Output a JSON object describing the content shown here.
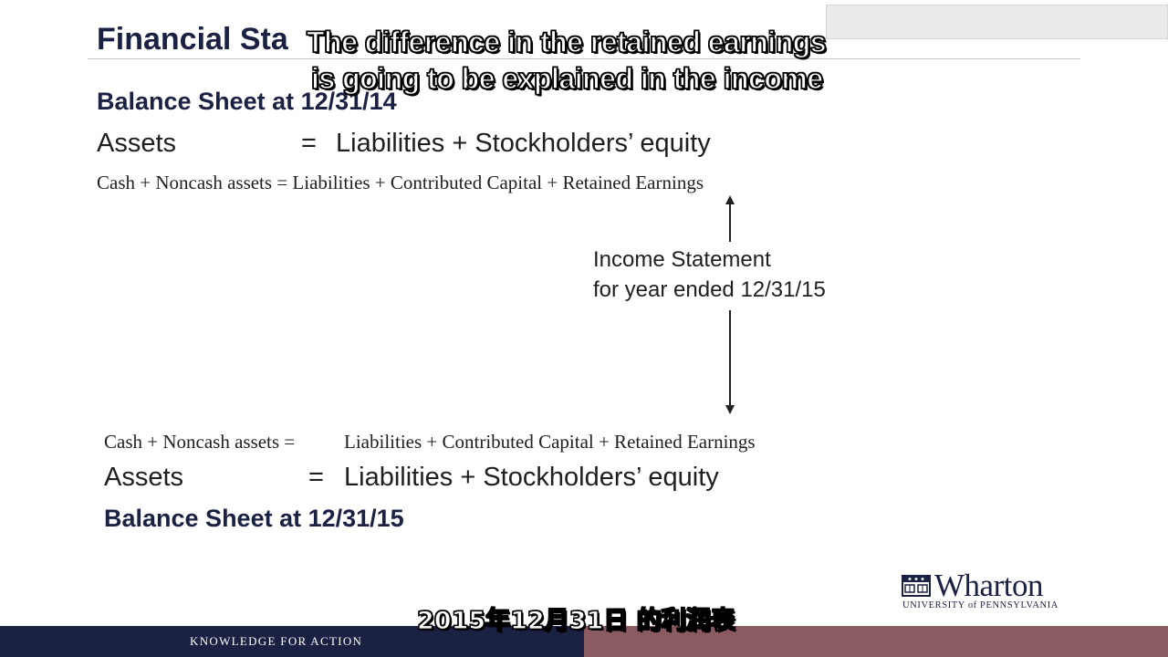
{
  "slide": {
    "title": "Financial Sta",
    "top_balance_sheet": {
      "heading": "Balance Sheet at 12/31/14",
      "assets": "Assets",
      "equals": "=",
      "liabilities_equity": "Liabilities + Stockholders’ equity",
      "detail": "Cash + Noncash assets = Liabilities + Contributed Capital + Retained Earnings"
    },
    "income_statement": {
      "line1": "Income Statement",
      "line2": "for year ended 12/31/15"
    },
    "bottom_balance_sheet": {
      "detail_left": "Cash + Noncash assets =",
      "detail_right": "Liabilities + Contributed Capital + Retained Earnings",
      "assets": "Assets",
      "equals": "=",
      "liabilities_equity": "Liabilities + Stockholders’ equity",
      "heading": "Balance Sheet at 12/31/15"
    }
  },
  "subtitles": {
    "english_line1": "The difference in the retained earnings",
    "english_line2": "is going to be explained in the income",
    "chinese": "2015年12月31日 的利润表"
  },
  "branding": {
    "logo_word": "Wharton",
    "logo_university": "UNIVERSITY of PENNSYLVANIA",
    "footer_tagline": "KNOWLEDGE FOR ACTION"
  },
  "colors": {
    "navy": "#1b2142",
    "maroon": "#8b5b62"
  }
}
